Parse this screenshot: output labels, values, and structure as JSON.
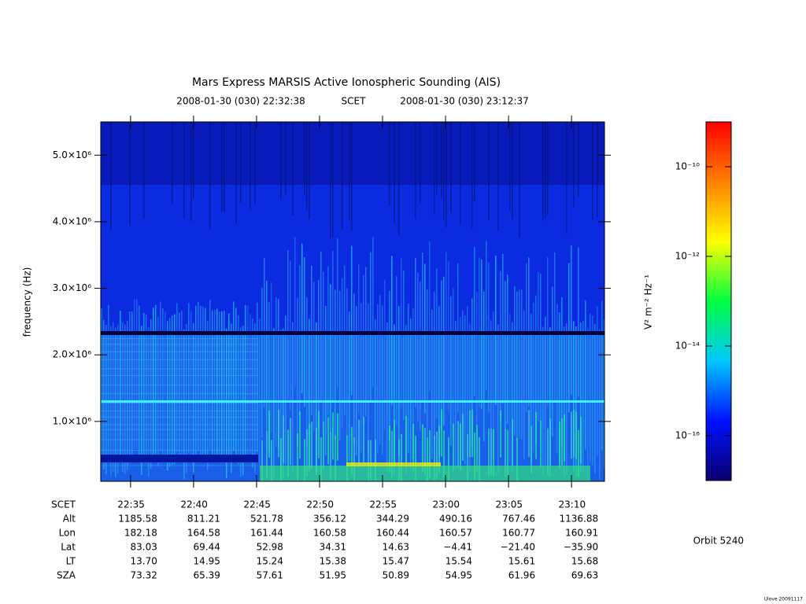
{
  "chart_data": {
    "type": "spectrogram",
    "title": "Mars Express MARSIS Active Ionospheric Sounding (AIS)",
    "time_start": "2008-01-30 (030) 22:32:38",
    "time_label": "SCET",
    "time_end": "2008-01-30 (030) 23:12:37",
    "y_label": "frequency (Hz)",
    "ylim": [
      100000,
      5500000
    ],
    "yticks": [
      {
        "value": 1000000,
        "label": "1.0×10⁶"
      },
      {
        "value": 2000000,
        "label": "2.0×10⁶"
      },
      {
        "value": 3000000,
        "label": "3.0×10⁶"
      },
      {
        "value": 4000000,
        "label": "4.0×10⁶"
      },
      {
        "value": 5000000,
        "label": "5.0×10⁶"
      }
    ],
    "xticks": [
      "22:35",
      "22:40",
      "22:45",
      "22:50",
      "22:55",
      "23:00",
      "23:05",
      "23:10"
    ],
    "ephemeris": [
      {
        "label": "Alt",
        "values": [
          1185.58,
          811.21,
          521.78,
          356.12,
          344.29,
          490.16,
          767.46,
          1136.88
        ]
      },
      {
        "label": "Lon",
        "values": [
          182.18,
          164.58,
          161.44,
          160.58,
          160.44,
          160.57,
          160.77,
          160.91
        ]
      },
      {
        "label": "Lat",
        "values": [
          83.03,
          69.44,
          52.98,
          34.31,
          14.63,
          -4.41,
          -21.4,
          -35.9
        ],
        "value_labels": [
          "83.03",
          "69.44",
          "52.98",
          "34.31",
          "14.63",
          "−4.41",
          "−21.40",
          "−35.90"
        ]
      },
      {
        "label": "LT",
        "values": [
          13.7,
          14.95,
          15.24,
          15.38,
          15.47,
          15.54,
          15.61,
          15.68
        ],
        "value_labels": [
          "13.70",
          "14.95",
          "15.24",
          "15.38",
          "15.47",
          "15.54",
          "15.61",
          "15.68"
        ]
      },
      {
        "label": "SZA",
        "values": [
          73.32,
          65.39,
          57.61,
          51.95,
          50.89,
          54.95,
          61.96,
          69.63
        ]
      }
    ],
    "colorbar": {
      "label": "V² m⁻² Hz⁻¹",
      "log_scale": true,
      "lim": [
        1e-17,
        1e-09
      ],
      "ticks": [
        {
          "value": 1e-10,
          "label": "10⁻¹⁰"
        },
        {
          "value": 1e-12,
          "label": "10⁻¹²"
        },
        {
          "value": 1e-14,
          "label": "10⁻¹⁴"
        },
        {
          "value": 1e-16,
          "label": "10⁻¹⁶"
        }
      ],
      "colors": [
        "#0a0070",
        "#0010ff",
        "#00c8ff",
        "#00ff40",
        "#ffff00",
        "#ff8000",
        "#ff0000"
      ]
    },
    "orbit": "Orbit 5240",
    "credit": "Ulove 20091117"
  }
}
